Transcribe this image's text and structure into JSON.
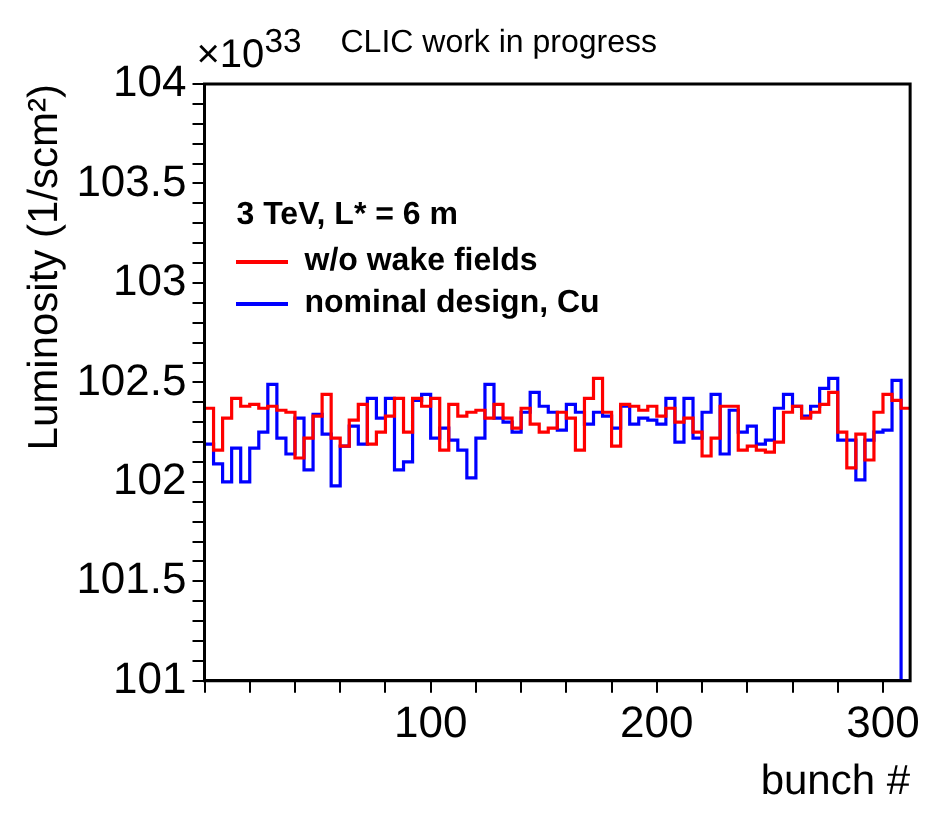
{
  "chart_data": {
    "type": "histogram",
    "title": "CLIC work in progress",
    "annotations": [
      "×10$^{33}$"
    ],
    "xlabel": "bunch #",
    "ylabel": "Luminosity (1/scm²)",
    "legend_title": "3 TeV, L* = 6 m",
    "legend": "top left",
    "bins": [
      0,
      4,
      8,
      12,
      16,
      20,
      24,
      28,
      32,
      36,
      40,
      44,
      48,
      52,
      56,
      60,
      64,
      68,
      72,
      76,
      80,
      84,
      88,
      92,
      96,
      100,
      104,
      108,
      112,
      116,
      120,
      124,
      128,
      132,
      136,
      140,
      144,
      148,
      152,
      156,
      160,
      164,
      168,
      172,
      176,
      180,
      184,
      188,
      192,
      196,
      200,
      204,
      208,
      212,
      216,
      220,
      224,
      228,
      232,
      236,
      240,
      244,
      248,
      252,
      256,
      260,
      264,
      268,
      272,
      276,
      280,
      284,
      288,
      292,
      296,
      300,
      304,
      308,
      312
    ],
    "series": [
      {
        "name": "w/o wake fields",
        "color": "#ff0000",
        "values": [
          102.37,
          102.16,
          102.32,
          102.42,
          102.38,
          102.39,
          102.37,
          102.38,
          102.36,
          102.35,
          102.12,
          102.22,
          102.33,
          102.44,
          102.22,
          102.18,
          102.31,
          102.39,
          102.19,
          102.25,
          102.33,
          102.42,
          102.25,
          102.42,
          102.38,
          102.42,
          102.16,
          102.39,
          102.33,
          102.35,
          102.36,
          102.32,
          102.39,
          102.32,
          102.27,
          102.37,
          102.29,
          102.25,
          102.27,
          102.35,
          102.32,
          102.16,
          102.42,
          102.52,
          102.35,
          102.18,
          102.39,
          102.38,
          102.36,
          102.38,
          102.33,
          102.37,
          102.3,
          102.32,
          102.25,
          102.13,
          102.22,
          102.38,
          102.38,
          102.16,
          102.18,
          102.16,
          102.15,
          102.2,
          102.35,
          102.38,
          102.32,
          102.35,
          102.39,
          102.45,
          102.25,
          102.07,
          102.24,
          102.11,
          102.35,
          102.44,
          102.41,
          102.37
        ]
      },
      {
        "name": "nominal design, Cu",
        "color": "#0000ff",
        "values": [
          102.19,
          102.09,
          102.0,
          102.17,
          102.0,
          102.17,
          102.25,
          102.49,
          102.22,
          102.14,
          102.32,
          102.06,
          102.34,
          102.24,
          101.98,
          102.18,
          102.28,
          102.19,
          102.42,
          102.32,
          102.42,
          102.06,
          102.1,
          102.41,
          102.44,
          102.22,
          102.27,
          102.21,
          102.16,
          102.02,
          102.22,
          102.49,
          102.32,
          102.3,
          102.25,
          102.35,
          102.45,
          102.38,
          102.35,
          102.26,
          102.39,
          102.35,
          102.29,
          102.35,
          102.33,
          102.27,
          102.38,
          102.29,
          102.32,
          102.31,
          102.29,
          102.42,
          102.2,
          102.42,
          102.22,
          102.35,
          102.44,
          102.14,
          102.36,
          102.25,
          102.28,
          102.19,
          102.21,
          102.37,
          102.44,
          102.38,
          102.33,
          102.38,
          102.47,
          102.52,
          102.21,
          102.21,
          102.01,
          102.21,
          102.25,
          102.26,
          102.51,
          101
        ]
      }
    ],
    "xlim": [
      0,
      312
    ],
    "xticks": [
      {
        "value": 0,
        "label": null
      },
      {
        "value": 20,
        "label": null
      },
      {
        "value": 40,
        "label": null
      },
      {
        "value": 60,
        "label": null
      },
      {
        "value": 80,
        "label": null
      },
      100,
      {
        "value": 120,
        "label": null
      },
      {
        "value": 140,
        "label": null
      },
      {
        "value": 160,
        "label": null
      },
      {
        "value": 180,
        "label": null
      },
      200,
      {
        "value": 220,
        "label": null
      },
      {
        "value": 240,
        "label": null
      },
      {
        "value": 260,
        "label": null
      },
      {
        "value": 280,
        "label": null
      },
      300
    ],
    "ylim": [
      101,
      104
    ],
    "yticks": [
      101,
      {
        "value": 101.1,
        "label": null
      },
      {
        "value": 101.2,
        "label": null
      },
      {
        "value": 101.3,
        "label": null
      },
      {
        "value": 101.4,
        "label": null
      },
      101.5,
      {
        "value": 101.6,
        "label": null
      },
      {
        "value": 101.7,
        "label": null
      },
      {
        "value": 101.8,
        "label": null
      },
      {
        "value": 101.9,
        "label": null
      },
      102,
      {
        "value": 102.1,
        "label": null
      },
      {
        "value": 102.2,
        "label": null
      },
      {
        "value": 102.3,
        "label": null
      },
      {
        "value": 102.4,
        "label": null
      },
      102.5,
      {
        "value": 102.6,
        "label": null
      },
      {
        "value": 102.7,
        "label": null
      },
      {
        "value": 102.8,
        "label": null
      },
      {
        "value": 102.9,
        "label": null
      },
      103,
      {
        "value": 103.1,
        "label": null
      },
      {
        "value": 103.2,
        "label": null
      },
      {
        "value": 103.3,
        "label": null
      },
      {
        "value": 103.4,
        "label": null
      },
      103.5,
      {
        "value": 103.6,
        "label": null
      },
      {
        "value": 103.7,
        "label": null
      },
      {
        "value": 103.8,
        "label": null
      },
      {
        "value": 103.9,
        "label": null
      },
      104
    ]
  }
}
